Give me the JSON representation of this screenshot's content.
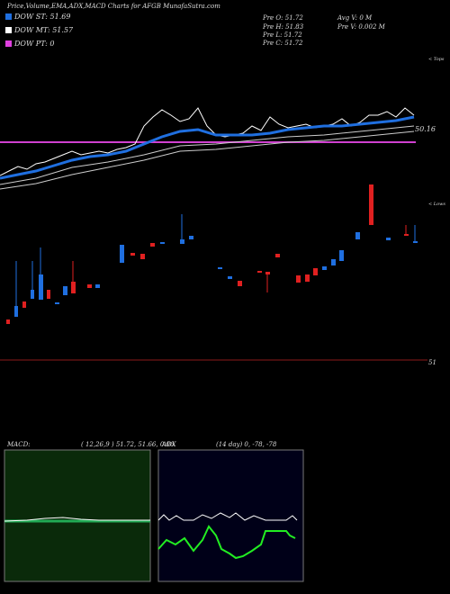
{
  "header": {
    "title": "Price,Volume,EMA,ADX,MACD Charts for AFGB MunafaSutra.com"
  },
  "legend": {
    "items": [
      "DOW ST: 51.69",
      "DOW MT: 51.57",
      "DOW PT: 0"
    ]
  },
  "stats": {
    "left": [
      "Pre  O: 51.72",
      "Pre  H: 51.83",
      "Pre  L: 51.72",
      "Pre  C: 51.72"
    ],
    "right": [
      "Avg V: 0  M",
      "Pre  V: 0.002  M"
    ]
  },
  "price_panel": {
    "tops": "< Tops",
    "lows": "< Lows",
    "level": "50.16",
    "bottom_level": "51"
  },
  "macd_panel": {
    "label": "MACD:",
    "params": "( 12,26,9 ) 51.72, 51.66, 0.06"
  },
  "adx_panel": {
    "label": "ADX",
    "params": "(14  day) 0, -78, -78"
  }
}
